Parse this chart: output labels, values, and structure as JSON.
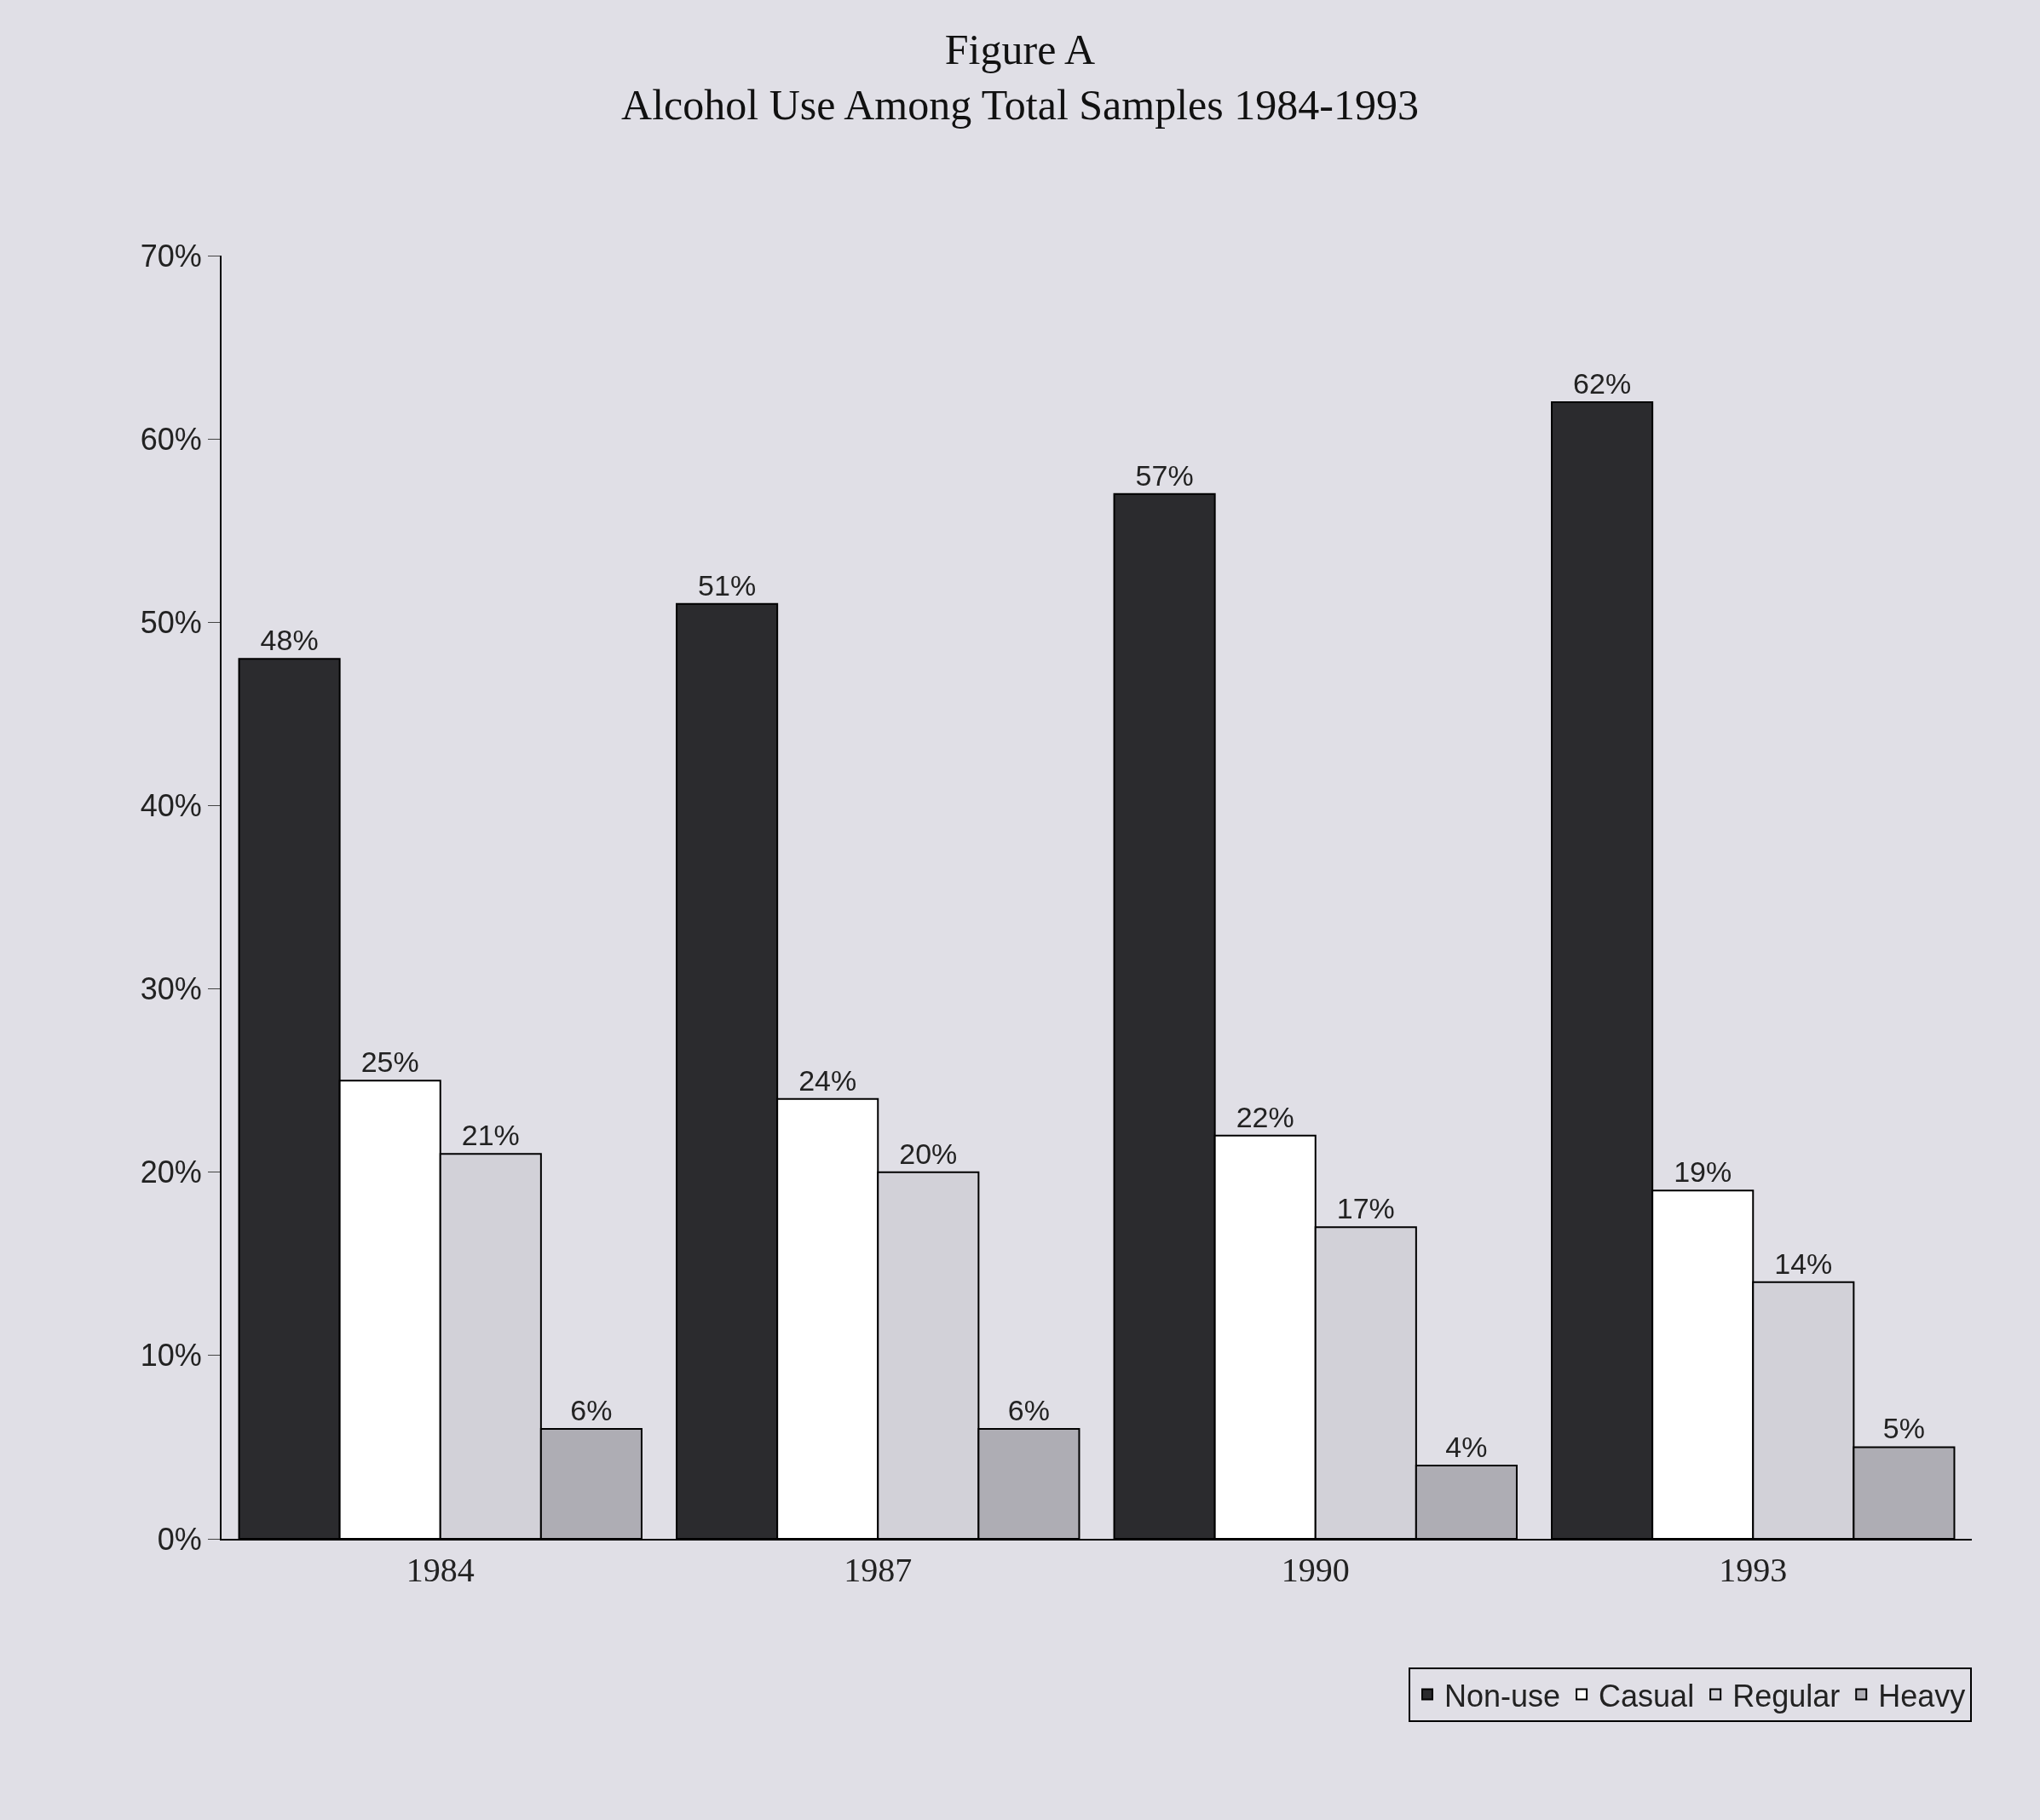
{
  "chart_data": {
    "type": "bar",
    "title": "Figure A\nAlcohol Use Among Total Samples 1984-1993",
    "categories": [
      "1984",
      "1987",
      "1990",
      "1993"
    ],
    "series": [
      {
        "name": "Non-use",
        "color": "#2b2b2e",
        "values": [
          48,
          51,
          57,
          62
        ],
        "value_labels": [
          "48%",
          "51%",
          "57%",
          "62%"
        ]
      },
      {
        "name": "Casual",
        "color": "#ffffff",
        "values": [
          25,
          24,
          22,
          19
        ],
        "value_labels": [
          "25%",
          "24%",
          "22%",
          "19%"
        ]
      },
      {
        "name": "Regular",
        "color": "#d2d1d8",
        "values": [
          21,
          20,
          17,
          14
        ],
        "value_labels": [
          "21%",
          "20%",
          "17%",
          "14%"
        ]
      },
      {
        "name": "Heavy",
        "color": "#aeadb4",
        "values": [
          6,
          6,
          4,
          5
        ],
        "value_labels": [
          "6%",
          "6%",
          "4%",
          "5%"
        ]
      }
    ],
    "ylim": [
      0,
      70
    ],
    "yticks": [
      {
        "value": 0,
        "label": "0%"
      },
      {
        "value": 10,
        "label": "10%"
      },
      {
        "value": 20,
        "label": "20%"
      },
      {
        "value": 30,
        "label": "30%"
      },
      {
        "value": 40,
        "label": "40%"
      },
      {
        "value": 50,
        "label": "50%"
      },
      {
        "value": 60,
        "label": "60%"
      },
      {
        "value": 70,
        "label": "70%"
      }
    ],
    "grid": false,
    "legend": "bottom right"
  }
}
